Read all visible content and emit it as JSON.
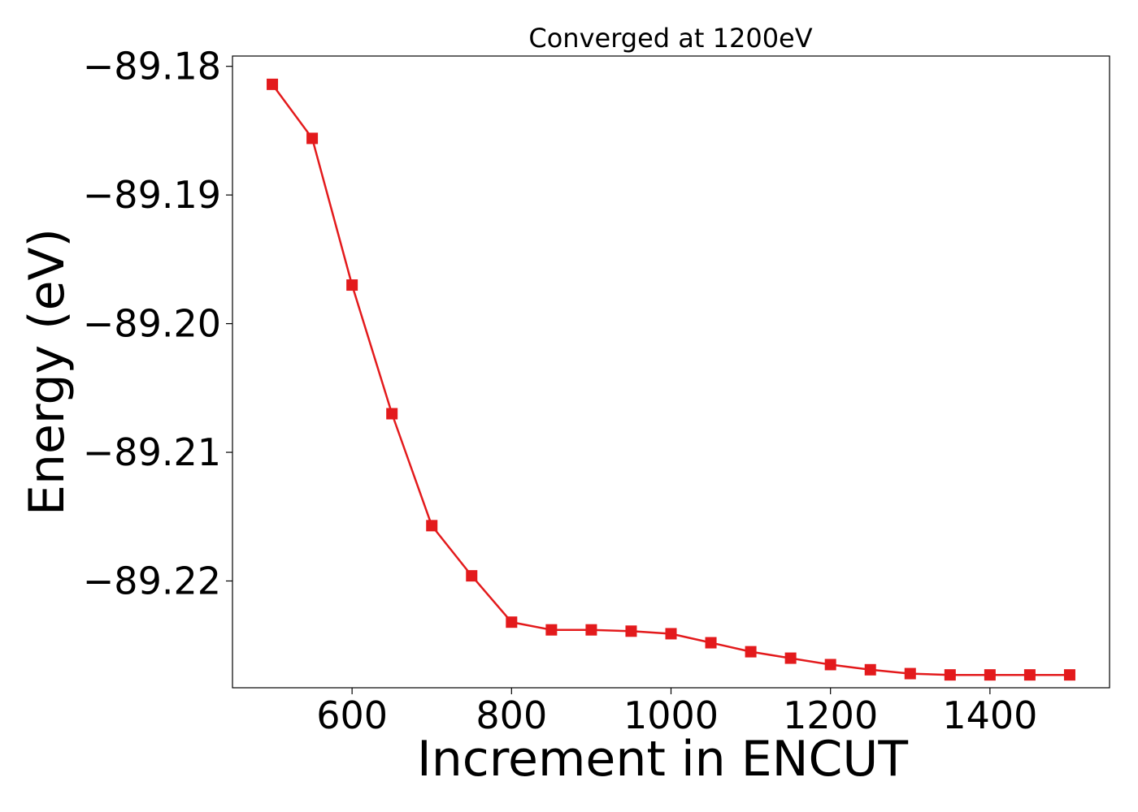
{
  "chart_data": {
    "type": "line",
    "title": "Converged at 1200eV",
    "xlabel": "Increment in ENCUT",
    "ylabel": "Energy (eV)",
    "xlim": [
      450,
      1550
    ],
    "ylim": [
      -89.2283,
      -89.1792
    ],
    "x_ticks": [
      600,
      800,
      1000,
      1200,
      1400
    ],
    "x_tick_labels": [
      "600",
      "800",
      "1000",
      "1200",
      "1400"
    ],
    "y_ticks": [
      -89.18,
      -89.19,
      -89.2,
      -89.21,
      -89.22
    ],
    "y_tick_labels": [
      "−89.18",
      "−89.19",
      "−89.20",
      "−89.21",
      "−89.22"
    ],
    "grid": false,
    "marker": "square",
    "color": "#e31a1c",
    "series": [
      {
        "x": [
          500,
          550,
          600,
          650,
          700,
          750,
          800,
          850,
          900,
          950,
          1000,
          1050,
          1100,
          1150,
          1200,
          1250,
          1300,
          1350,
          1400,
          1450,
          1500
        ],
        "values": [
          -89.1814,
          -89.1856,
          -89.197,
          -89.207,
          -89.2157,
          -89.2196,
          -89.2232,
          -89.2238,
          -89.2238,
          -89.2239,
          -89.2241,
          -89.2248,
          -89.2255,
          -89.226,
          -89.2265,
          -89.2269,
          -89.2272,
          -89.2273,
          -89.2273,
          -89.2273,
          -89.2273
        ]
      }
    ]
  }
}
